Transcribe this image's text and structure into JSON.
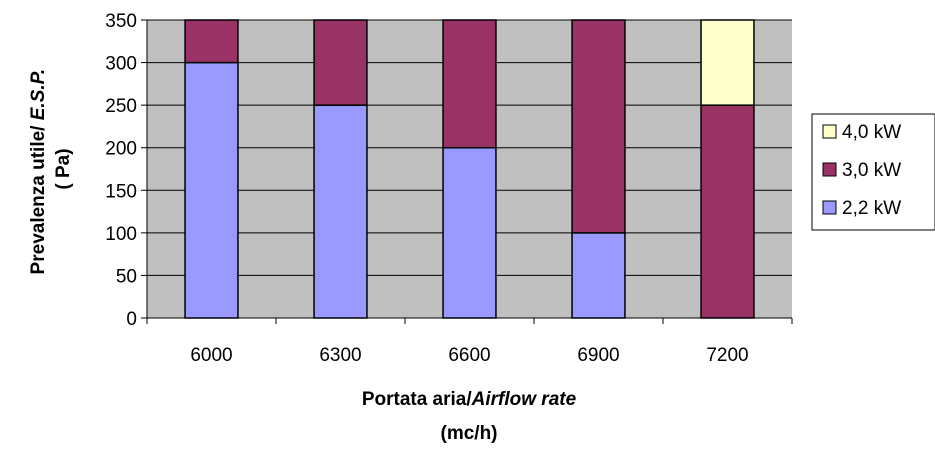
{
  "chart_data": {
    "type": "bar",
    "stacked": true,
    "categories": [
      "6000",
      "6300",
      "6600",
      "6900",
      "7200"
    ],
    "series": [
      {
        "name": "2,2 kW",
        "color": "#9999FF",
        "values": [
          300,
          250,
          200,
          100,
          0
        ]
      },
      {
        "name": "3,0 kW",
        "color": "#993366",
        "values": [
          50,
          100,
          150,
          250,
          250
        ]
      },
      {
        "name": "4,0 kW",
        "color": "#FFFFCC",
        "values": [
          0,
          0,
          0,
          0,
          100
        ]
      }
    ],
    "xlabel": {
      "line1_regular": "Portata aria/",
      "line1_italic": "Airflow rate",
      "line2": "(mc/h)"
    },
    "ylabel": {
      "line1_regular": "Prevalenza utile/ ",
      "line1_italic": "E.S.P.",
      "line2": "( Pa)"
    },
    "ylim": [
      0,
      350
    ],
    "yticks": [
      0,
      50,
      100,
      150,
      200,
      250,
      300,
      350
    ],
    "grid": true,
    "plot_background": "#C0C0C0",
    "legend_position": "right",
    "legend_order": [
      "4,0 kW",
      "3,0 kW",
      "2,2 kW"
    ]
  }
}
